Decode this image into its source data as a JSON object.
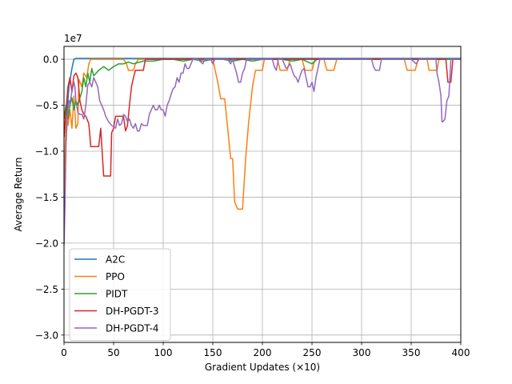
{
  "chart_data": {
    "type": "line",
    "xlabel": "Gradient Updates (×10)",
    "ylabel": "Average Return",
    "offset_label": "1e7",
    "xlim": [
      0,
      400
    ],
    "ylim": [
      -3.08,
      0.14
    ],
    "x_ticks": [
      0,
      50,
      100,
      150,
      200,
      250,
      300,
      350,
      400
    ],
    "y_ticks": [
      0.0,
      -0.5,
      -1.0,
      -1.5,
      -2.0,
      -2.5,
      -3.0
    ],
    "y_tick_labels": [
      "0.0",
      "−0.5",
      "−1.0",
      "−1.5",
      "−2.0",
      "−2.5",
      "−3.0"
    ],
    "grid": true,
    "legend_position": "lower-left",
    "series": [
      {
        "name": "A2C",
        "color": "#1f77b4",
        "points": [
          [
            0,
            -2.0
          ],
          [
            2,
            -0.7
          ],
          [
            5,
            -0.3
          ],
          [
            8,
            -0.1
          ],
          [
            10,
            0.0
          ],
          [
            12,
            0.01
          ],
          [
            400,
            0.01
          ]
        ]
      },
      {
        "name": "PPO",
        "color": "#ff7f0e",
        "points": [
          [
            0,
            -1.5
          ],
          [
            2,
            -0.6
          ],
          [
            4,
            -0.72
          ],
          [
            6,
            -0.55
          ],
          [
            8,
            -0.75
          ],
          [
            10,
            -0.4
          ],
          [
            12,
            -0.75
          ],
          [
            14,
            -0.7
          ],
          [
            15,
            -0.22
          ],
          [
            18,
            -0.3
          ],
          [
            20,
            -0.15
          ],
          [
            23,
            -0.2
          ],
          [
            25,
            -0.05
          ],
          [
            27,
            0.0
          ],
          [
            60,
            0.0
          ],
          [
            63,
            -0.05
          ],
          [
            65,
            -0.12
          ],
          [
            70,
            -0.12
          ],
          [
            72,
            -0.05
          ],
          [
            75,
            0.0
          ],
          [
            125,
            0.0
          ],
          [
            130,
            0.0
          ],
          [
            150,
            0.0
          ],
          [
            155,
            -0.25
          ],
          [
            158,
            -0.43
          ],
          [
            162,
            -0.43
          ],
          [
            165,
            -0.75
          ],
          [
            168,
            -1.08
          ],
          [
            170,
            -1.08
          ],
          [
            172,
            -1.55
          ],
          [
            175,
            -1.63
          ],
          [
            180,
            -1.63
          ],
          [
            183,
            -1.1
          ],
          [
            186,
            -0.7
          ],
          [
            190,
            -0.3
          ],
          [
            193,
            -0.12
          ],
          [
            200,
            -0.12
          ],
          [
            202,
            0.0
          ],
          [
            215,
            0.0
          ],
          [
            218,
            -0.12
          ],
          [
            225,
            -0.12
          ],
          [
            228,
            0.0
          ],
          [
            240,
            0.0
          ],
          [
            243,
            -0.12
          ],
          [
            250,
            -0.12
          ],
          [
            253,
            0.0
          ],
          [
            262,
            0.0
          ],
          [
            265,
            -0.12
          ],
          [
            272,
            -0.12
          ],
          [
            275,
            0.0
          ],
          [
            343,
            0.0
          ],
          [
            346,
            -0.12
          ],
          [
            354,
            -0.12
          ],
          [
            357,
            0.0
          ],
          [
            366,
            0.0
          ],
          [
            368,
            -0.12
          ],
          [
            376,
            -0.12
          ],
          [
            378,
            0.0
          ],
          [
            400,
            0.0
          ]
        ]
      },
      {
        "name": "PIDT",
        "color": "#2ca02c",
        "points": [
          [
            0,
            -0.65
          ],
          [
            2,
            -0.5
          ],
          [
            4,
            -0.65
          ],
          [
            6,
            -0.5
          ],
          [
            8,
            -0.42
          ],
          [
            10,
            -0.55
          ],
          [
            12,
            -0.45
          ],
          [
            14,
            -0.5
          ],
          [
            16,
            -0.42
          ],
          [
            18,
            -0.35
          ],
          [
            20,
            -0.2
          ],
          [
            22,
            -0.3
          ],
          [
            24,
            -0.15
          ],
          [
            26,
            -0.25
          ],
          [
            28,
            -0.1
          ],
          [
            30,
            -0.18
          ],
          [
            35,
            -0.12
          ],
          [
            40,
            -0.08
          ],
          [
            45,
            -0.12
          ],
          [
            50,
            -0.08
          ],
          [
            55,
            -0.05
          ],
          [
            60,
            -0.05
          ],
          [
            65,
            -0.03
          ],
          [
            70,
            -0.05
          ],
          [
            80,
            -0.02
          ],
          [
            90,
            -0.02
          ],
          [
            100,
            0.0
          ],
          [
            110,
            0.0
          ],
          [
            120,
            -0.02
          ],
          [
            130,
            0.0
          ],
          [
            140,
            -0.02
          ],
          [
            150,
            0.0
          ],
          [
            160,
            0.0
          ],
          [
            170,
            -0.02
          ],
          [
            180,
            0.0
          ],
          [
            190,
            -0.02
          ],
          [
            200,
            0.0
          ],
          [
            210,
            0.0
          ],
          [
            220,
            0.0
          ],
          [
            230,
            -0.02
          ],
          [
            240,
            0.0
          ],
          [
            250,
            -0.05
          ],
          [
            255,
            0.0
          ],
          [
            270,
            0.0
          ],
          [
            300,
            0.0
          ],
          [
            350,
            0.0
          ],
          [
            400,
            0.0
          ]
        ]
      },
      {
        "name": "DH-PGDT-3",
        "color": "#d62728",
        "points": [
          [
            0,
            -0.85
          ],
          [
            2,
            -0.55
          ],
          [
            4,
            -0.3
          ],
          [
            6,
            -0.2
          ],
          [
            8,
            -0.35
          ],
          [
            10,
            -0.18
          ],
          [
            12,
            -0.15
          ],
          [
            14,
            -0.2
          ],
          [
            16,
            -0.45
          ],
          [
            18,
            -0.55
          ],
          [
            20,
            -0.6
          ],
          [
            22,
            -0.62
          ],
          [
            25,
            -0.7
          ],
          [
            27,
            -0.95
          ],
          [
            35,
            -0.95
          ],
          [
            37,
            -0.75
          ],
          [
            40,
            -1.27
          ],
          [
            47,
            -1.27
          ],
          [
            48,
            -0.8
          ],
          [
            50,
            -0.75
          ],
          [
            52,
            -0.62
          ],
          [
            60,
            -0.62
          ],
          [
            62,
            -0.78
          ],
          [
            64,
            -0.72
          ],
          [
            66,
            -0.5
          ],
          [
            68,
            -0.3
          ],
          [
            70,
            -0.2
          ],
          [
            72,
            -0.12
          ],
          [
            80,
            -0.12
          ],
          [
            82,
            0.0
          ],
          [
            85,
            0.0
          ],
          [
            100,
            0.0
          ],
          [
            150,
            0.0
          ],
          [
            200,
            0.0
          ],
          [
            250,
            0.0
          ],
          [
            300,
            0.0
          ],
          [
            350,
            0.0
          ],
          [
            385,
            0.0
          ],
          [
            387,
            -0.25
          ],
          [
            390,
            -0.25
          ],
          [
            392,
            0.0
          ],
          [
            400,
            0.0
          ]
        ]
      },
      {
        "name": "DH-PGDT-4",
        "color": "#9467bd",
        "points": [
          [
            0,
            -2.02
          ],
          [
            1,
            -1.6
          ],
          [
            2,
            -0.95
          ],
          [
            3,
            -0.7
          ],
          [
            4,
            -0.55
          ],
          [
            5,
            -0.45
          ],
          [
            6,
            -0.48
          ],
          [
            8,
            -0.35
          ],
          [
            10,
            -0.25
          ],
          [
            11,
            -0.3
          ],
          [
            12,
            -0.45
          ],
          [
            14,
            -0.58
          ],
          [
            16,
            -0.6
          ],
          [
            18,
            -0.6
          ],
          [
            20,
            -0.65
          ],
          [
            22,
            -0.5
          ],
          [
            24,
            -0.28
          ],
          [
            26,
            -0.25
          ],
          [
            28,
            -0.3
          ],
          [
            30,
            -0.2
          ],
          [
            32,
            -0.25
          ],
          [
            34,
            -0.3
          ],
          [
            36,
            -0.45
          ],
          [
            38,
            -0.5
          ],
          [
            40,
            -0.55
          ],
          [
            42,
            -0.62
          ],
          [
            45,
            -0.68
          ],
          [
            48,
            -0.72
          ],
          [
            52,
            -0.75
          ],
          [
            54,
            -0.65
          ],
          [
            56,
            -0.72
          ],
          [
            58,
            -0.7
          ],
          [
            60,
            -0.6
          ],
          [
            62,
            -0.62
          ],
          [
            64,
            -0.68
          ],
          [
            66,
            -0.65
          ],
          [
            68,
            -0.72
          ],
          [
            70,
            -0.75
          ],
          [
            72,
            -0.7
          ],
          [
            74,
            -0.78
          ],
          [
            76,
            -0.78
          ],
          [
            78,
            -0.7
          ],
          [
            80,
            -0.72
          ],
          [
            84,
            -0.72
          ],
          [
            86,
            -0.6
          ],
          [
            88,
            -0.55
          ],
          [
            90,
            -0.5
          ],
          [
            92,
            -0.55
          ],
          [
            94,
            -0.55
          ],
          [
            96,
            -0.5
          ],
          [
            98,
            -0.55
          ],
          [
            100,
            -0.55
          ],
          [
            102,
            -0.62
          ],
          [
            104,
            -0.5
          ],
          [
            106,
            -0.45
          ],
          [
            108,
            -0.38
          ],
          [
            110,
            -0.32
          ],
          [
            112,
            -0.3
          ],
          [
            114,
            -0.2
          ],
          [
            116,
            -0.25
          ],
          [
            118,
            -0.15
          ],
          [
            120,
            -0.15
          ],
          [
            122,
            -0.05
          ],
          [
            124,
            -0.1
          ],
          [
            126,
            -0.1
          ],
          [
            128,
            -0.05
          ],
          [
            130,
            0.0
          ],
          [
            135,
            0.0
          ],
          [
            140,
            -0.05
          ],
          [
            142,
            0.0
          ],
          [
            148,
            0.0
          ],
          [
            150,
            -0.05
          ],
          [
            152,
            0.0
          ],
          [
            165,
            0.0
          ],
          [
            168,
            -0.05
          ],
          [
            170,
            0.0
          ],
          [
            172,
            -0.08
          ],
          [
            174,
            -0.15
          ],
          [
            176,
            -0.25
          ],
          [
            178,
            -0.25
          ],
          [
            180,
            -0.15
          ],
          [
            182,
            -0.1
          ],
          [
            184,
            0.0
          ],
          [
            200,
            0.0
          ],
          [
            210,
            0.0
          ],
          [
            212,
            -0.08
          ],
          [
            214,
            -0.12
          ],
          [
            216,
            0.0
          ],
          [
            220,
            0.0
          ],
          [
            222,
            -0.05
          ],
          [
            224,
            -0.1
          ],
          [
            226,
            -0.08
          ],
          [
            228,
            -0.05
          ],
          [
            230,
            -0.12
          ],
          [
            232,
            -0.18
          ],
          [
            234,
            -0.2
          ],
          [
            236,
            -0.25
          ],
          [
            238,
            -0.18
          ],
          [
            240,
            -0.12
          ],
          [
            242,
            -0.1
          ],
          [
            244,
            -0.2
          ],
          [
            246,
            -0.3
          ],
          [
            248,
            -0.3
          ],
          [
            250,
            -0.25
          ],
          [
            252,
            -0.35
          ],
          [
            254,
            -0.2
          ],
          [
            256,
            -0.1
          ],
          [
            258,
            0.0
          ],
          [
            300,
            0.0
          ],
          [
            310,
            0.0
          ],
          [
            312,
            -0.08
          ],
          [
            314,
            -0.12
          ],
          [
            318,
            -0.12
          ],
          [
            320,
            0.0
          ],
          [
            330,
            0.0
          ],
          [
            340,
            0.0
          ],
          [
            350,
            0.0
          ],
          [
            355,
            -0.05
          ],
          [
            358,
            0.0
          ],
          [
            370,
            0.0
          ],
          [
            375,
            0.0
          ],
          [
            376,
            -0.15
          ],
          [
            378,
            -0.25
          ],
          [
            380,
            -0.4
          ],
          [
            381,
            -0.68
          ],
          [
            382,
            -0.68
          ],
          [
            384,
            -0.65
          ],
          [
            386,
            -0.45
          ],
          [
            388,
            -0.4
          ],
          [
            390,
            0.0
          ],
          [
            400,
            0.0
          ]
        ]
      }
    ]
  }
}
